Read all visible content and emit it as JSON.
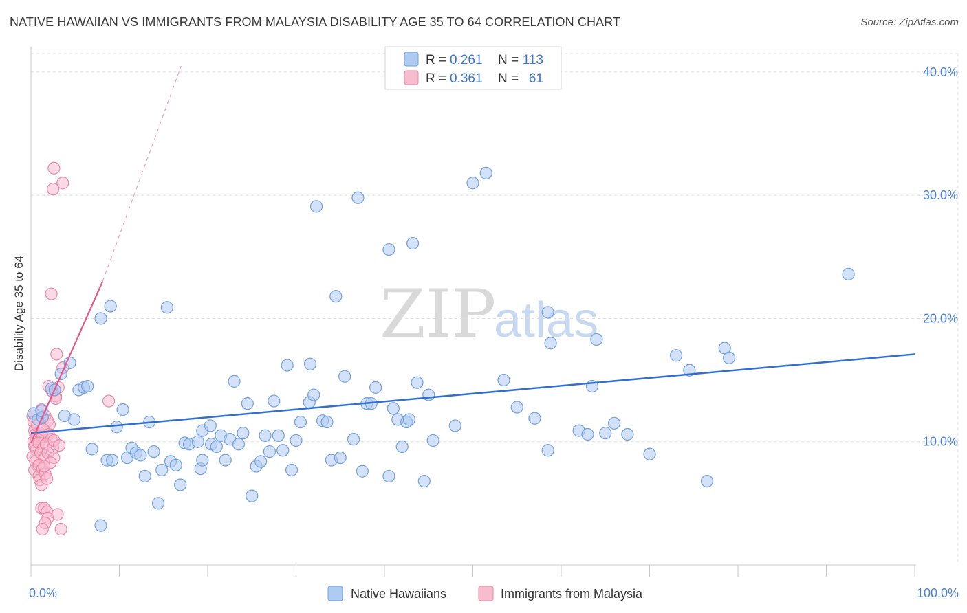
{
  "title": "NATIVE HAWAIIAN VS IMMIGRANTS FROM MALAYSIA DISABILITY AGE 35 TO 64 CORRELATION CHART",
  "source": "Source: ZipAtlas.com",
  "watermark": {
    "zip": "ZIP",
    "atlas": "atlas"
  },
  "colors": {
    "blue_fill": "#aecbf2",
    "blue_stroke": "#6f9fe2",
    "blue_line": "#2f6fcf",
    "pink_fill": "#f8bccf",
    "pink_stroke": "#ec86a6",
    "pink_line": "#e4578a",
    "tick_text": "#4a7fd6",
    "grid": "#dddddd"
  },
  "legend": {
    "rows": [
      {
        "r_label": "R = ",
        "r_value": "0.261",
        "n_label": "N = ",
        "n_value": "113"
      },
      {
        "r_label": "R = ",
        "r_value": "0.361",
        "n_label": "N = ",
        "n_value": "61"
      }
    ]
  },
  "bottom_legend": [
    "Native Hawaiians",
    "Immigrants from Malaysia"
  ],
  "chart_data": {
    "type": "scatter",
    "title": "NATIVE HAWAIIAN VS IMMIGRANTS FROM MALAYSIA DISABILITY AGE 35 TO 64 CORRELATION CHART",
    "xlabel": "",
    "ylabel": "Disability Age 35 to 64",
    "xlim": [
      0,
      100
    ],
    "ylim": [
      0,
      41.5
    ],
    "x_tick_labels": [
      "0.0%",
      "100.0%"
    ],
    "y_ticks": [
      10,
      20,
      30,
      40
    ],
    "y_tick_labels": [
      "10.0%",
      "20.0%",
      "30.0%",
      "40.0%"
    ],
    "series": [
      {
        "name": "Native Hawaiians",
        "R": 0.261,
        "N": 113,
        "trend": {
          "x0": 0,
          "y0": 10.7,
          "x1": 100,
          "y1": 17.1
        },
        "points": [
          [
            0.3,
            12.3
          ],
          [
            0.8,
            11.8
          ],
          [
            1.3,
            12.0
          ],
          [
            1.2,
            12.5
          ],
          [
            2.3,
            14.3
          ],
          [
            2.7,
            14.2
          ],
          [
            3.4,
            15.5
          ],
          [
            3.8,
            12.1
          ],
          [
            4.4,
            16.4
          ],
          [
            4.9,
            11.8
          ],
          [
            5.4,
            14.2
          ],
          [
            6.0,
            14.4
          ],
          [
            6.4,
            14.5
          ],
          [
            6.9,
            9.4
          ],
          [
            7.9,
            20.0
          ],
          [
            7.9,
            3.2
          ],
          [
            8.6,
            8.5
          ],
          [
            9.0,
            21.0
          ],
          [
            9.2,
            8.5
          ],
          [
            9.7,
            11.2
          ],
          [
            10.4,
            12.6
          ],
          [
            10.9,
            8.7
          ],
          [
            11.4,
            9.5
          ],
          [
            11.9,
            9.1
          ],
          [
            12.4,
            8.9
          ],
          [
            12.9,
            7.2
          ],
          [
            13.4,
            11.6
          ],
          [
            13.9,
            9.2
          ],
          [
            14.4,
            5.0
          ],
          [
            14.8,
            7.7
          ],
          [
            15.4,
            20.9
          ],
          [
            15.8,
            8.4
          ],
          [
            16.4,
            8.1
          ],
          [
            16.9,
            6.5
          ],
          [
            17.4,
            9.9
          ],
          [
            17.9,
            9.8
          ],
          [
            18.9,
            10.0
          ],
          [
            19.2,
            7.8
          ],
          [
            19.4,
            8.5
          ],
          [
            19.4,
            10.9
          ],
          [
            20.3,
            11.3
          ],
          [
            20.4,
            9.8
          ],
          [
            21.0,
            9.6
          ],
          [
            21.5,
            10.5
          ],
          [
            22.0,
            8.5
          ],
          [
            22.5,
            10.2
          ],
          [
            23.0,
            14.9
          ],
          [
            23.5,
            9.8
          ],
          [
            24.0,
            10.7
          ],
          [
            24.5,
            13.1
          ],
          [
            25.0,
            5.6
          ],
          [
            25.5,
            8.0
          ],
          [
            26.0,
            8.4
          ],
          [
            26.5,
            10.5
          ],
          [
            27.0,
            9.2
          ],
          [
            27.5,
            13.3
          ],
          [
            28.0,
            10.5
          ],
          [
            28.5,
            9.3
          ],
          [
            29.0,
            16.2
          ],
          [
            29.5,
            7.7
          ],
          [
            30.0,
            10.1
          ],
          [
            30.5,
            11.6
          ],
          [
            31.5,
            13.2
          ],
          [
            31.6,
            16.3
          ],
          [
            32.0,
            13.8
          ],
          [
            32.3,
            29.1
          ],
          [
            33.0,
            11.7
          ],
          [
            33.5,
            11.6
          ],
          [
            34.0,
            8.5
          ],
          [
            34.5,
            21.8
          ],
          [
            35.0,
            8.7
          ],
          [
            35.5,
            15.3
          ],
          [
            36.5,
            10.2
          ],
          [
            37.0,
            29.8
          ],
          [
            37.5,
            7.6
          ],
          [
            38.0,
            13.1
          ],
          [
            38.5,
            13.1
          ],
          [
            39.0,
            14.4
          ],
          [
            40.5,
            25.6
          ],
          [
            40.5,
            7.2
          ],
          [
            41.0,
            12.7
          ],
          [
            41.5,
            11.8
          ],
          [
            42.0,
            9.6
          ],
          [
            42.5,
            11.6
          ],
          [
            42.8,
            11.8
          ],
          [
            43.2,
            26.1
          ],
          [
            43.7,
            14.8
          ],
          [
            44.5,
            6.8
          ],
          [
            45.0,
            13.8
          ],
          [
            45.5,
            10.1
          ],
          [
            48.0,
            11.3
          ],
          [
            50.0,
            31.0
          ],
          [
            51.5,
            31.8
          ],
          [
            53.5,
            15.0
          ],
          [
            55.0,
            12.8
          ],
          [
            57.0,
            11.9
          ],
          [
            58.5,
            9.3
          ],
          [
            58.5,
            20.5
          ],
          [
            58.8,
            18.0
          ],
          [
            62.0,
            10.9
          ],
          [
            63.0,
            10.6
          ],
          [
            63.5,
            14.5
          ],
          [
            64.0,
            18.3
          ],
          [
            65.0,
            10.7
          ],
          [
            66.0,
            11.5
          ],
          [
            67.5,
            10.6
          ],
          [
            70.0,
            9.0
          ],
          [
            73.0,
            17.0
          ],
          [
            74.5,
            15.8
          ],
          [
            76.5,
            6.8
          ],
          [
            78.5,
            17.6
          ],
          [
            79.0,
            16.8
          ],
          [
            92.5,
            23.6
          ]
        ]
      },
      {
        "name": "Immigrants from Malaysia",
        "R": 0.361,
        "N": 61,
        "trend": {
          "x0": 0,
          "y0": 9.9,
          "x1": 8.1,
          "y1": 23.0
        },
        "trend_extension": {
          "x0": 8.1,
          "y0": 23.0,
          "x1": 17.0,
          "y1": 40.5
        },
        "points": [
          [
            0.2,
            12.1
          ],
          [
            0.3,
            11.6
          ],
          [
            0.4,
            10.9
          ],
          [
            0.5,
            10.6
          ],
          [
            0.6,
            10.3
          ],
          [
            0.3,
            10.0
          ],
          [
            0.4,
            9.6
          ],
          [
            0.6,
            9.3
          ],
          [
            0.2,
            8.8
          ],
          [
            0.5,
            8.4
          ],
          [
            0.8,
            8.0
          ],
          [
            0.4,
            7.7
          ],
          [
            0.9,
            7.2
          ],
          [
            1.0,
            6.9
          ],
          [
            1.2,
            6.5
          ],
          [
            0.7,
            11.3
          ],
          [
            1.0,
            10.7
          ],
          [
            1.3,
            10.4
          ],
          [
            0.9,
            9.9
          ],
          [
            1.4,
            9.5
          ],
          [
            1.1,
            9.1
          ],
          [
            1.5,
            8.6
          ],
          [
            0.9,
            8.1
          ],
          [
            1.3,
            7.8
          ],
          [
            1.6,
            7.4
          ],
          [
            1.8,
            7.0
          ],
          [
            1.2,
            12.6
          ],
          [
            1.6,
            12.1
          ],
          [
            1.9,
            11.7
          ],
          [
            2.1,
            11.4
          ],
          [
            1.4,
            11.0
          ],
          [
            2.0,
            10.6
          ],
          [
            2.3,
            10.2
          ],
          [
            1.7,
            9.8
          ],
          [
            2.5,
            9.5
          ],
          [
            1.9,
            9.1
          ],
          [
            2.6,
            8.7
          ],
          [
            2.2,
            8.3
          ],
          [
            1.5,
            8.0
          ],
          [
            2.0,
            14.5
          ],
          [
            2.4,
            14.1
          ],
          [
            2.8,
            13.7
          ],
          [
            3.1,
            14.4
          ],
          [
            2.9,
            17.1
          ],
          [
            3.6,
            16.0
          ],
          [
            2.3,
            22.0
          ],
          [
            3.6,
            31.0
          ],
          [
            2.5,
            30.5
          ],
          [
            2.6,
            32.2
          ],
          [
            1.2,
            4.6
          ],
          [
            1.5,
            4.6
          ],
          [
            1.8,
            4.3
          ],
          [
            1.9,
            3.8
          ],
          [
            1.6,
            3.4
          ],
          [
            1.3,
            2.9
          ],
          [
            3.4,
            2.9
          ],
          [
            3.0,
            4.1
          ],
          [
            8.8,
            13.3
          ],
          [
            2.6,
            10.1
          ],
          [
            3.2,
            9.7
          ],
          [
            2.8,
            13.5
          ]
        ]
      }
    ]
  }
}
